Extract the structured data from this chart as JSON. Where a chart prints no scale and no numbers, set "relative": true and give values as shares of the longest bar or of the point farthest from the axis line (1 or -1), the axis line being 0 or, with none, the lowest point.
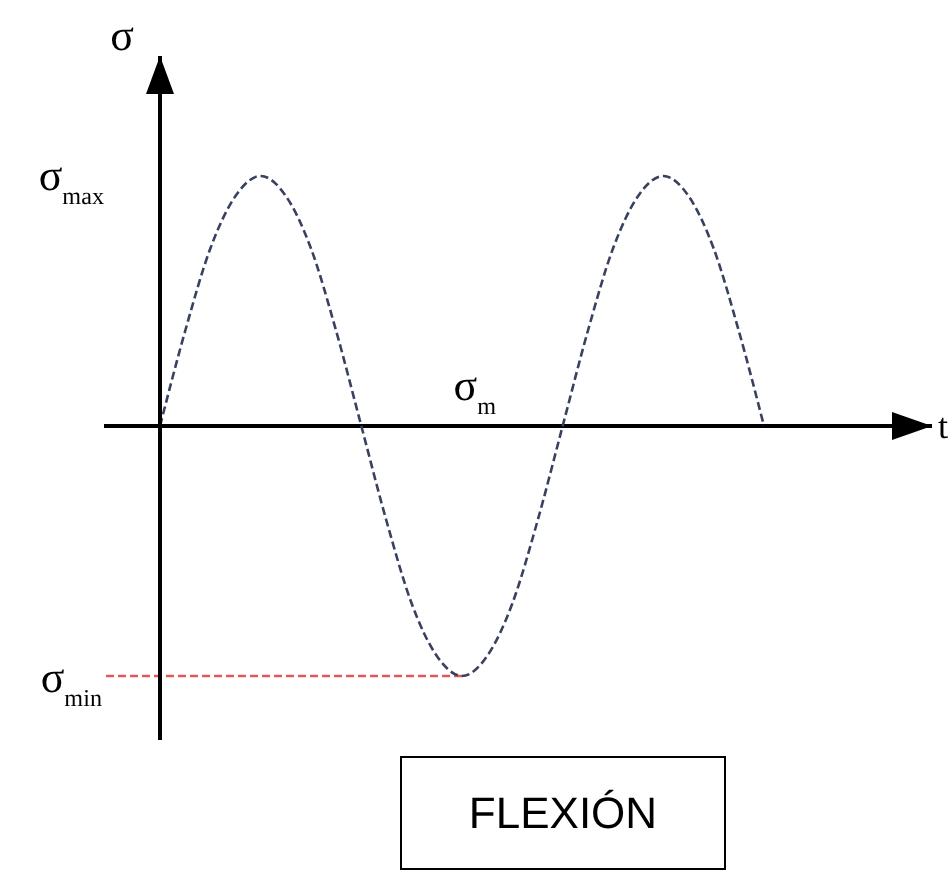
{
  "chart_data": {
    "type": "line",
    "relative": true,
    "tick_labels": false,
    "ylabel": "σ",
    "xlabel": "t",
    "categories": [
      null,
      null,
      null,
      null,
      null,
      null,
      null,
      null,
      null,
      null,
      null,
      null,
      null,
      null,
      null,
      null,
      null,
      null,
      null,
      null,
      null,
      null,
      null,
      null,
      null
    ],
    "series": [
      {
        "color": "#3a4060",
        "values": [
          0,
          0.38,
          0.71,
          0.92,
          1,
          0.92,
          0.71,
          0.38,
          0,
          -0.38,
          -0.71,
          -0.92,
          -1,
          -0.92,
          -0.71,
          -0.38,
          0,
          0.38,
          0.71,
          0.92,
          1,
          0.92,
          0.71,
          0.38,
          0
        ]
      }
    ],
    "line_style": "dashed",
    "marker": "none",
    "ref_lines": [
      {
        "axis": "y",
        "value": 0,
        "label": "σ$_{m}$",
        "color": "#000000"
      },
      {
        "axis": "y",
        "value": -1,
        "label": "σ$_{min}$",
        "color": "#e05a5a",
        "line_style": "dashed"
      }
    ],
    "annotations": [
      "σ$_{max}$",
      "FLEXIÓN"
    ]
  }
}
